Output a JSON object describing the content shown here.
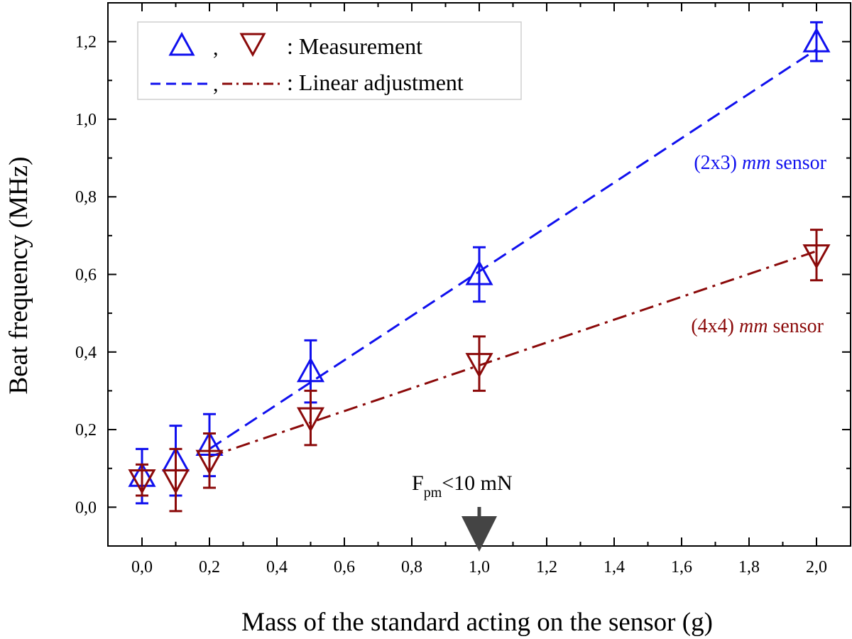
{
  "chart_data": {
    "type": "scatter",
    "xlabel": "Mass of the standard acting on the sensor (g)",
    "ylabel": "Beat frequency (MHz)",
    "x_ticks": [
      {
        "value": 0.0,
        "label": "0,0"
      },
      {
        "value": 0.2,
        "label": "0,2"
      },
      {
        "value": 0.4,
        "label": "0,4"
      },
      {
        "value": 0.6,
        "label": "0,6"
      },
      {
        "value": 0.8,
        "label": "0,8"
      },
      {
        "value": 1.0,
        "label": "1,0"
      },
      {
        "value": 1.2,
        "label": "1,2"
      },
      {
        "value": 1.4,
        "label": "1,4"
      },
      {
        "value": 1.6,
        "label": "1,6"
      },
      {
        "value": 1.8,
        "label": "1,8"
      },
      {
        "value": 2.0,
        "label": "2,0"
      }
    ],
    "y_ticks": [
      {
        "value": 0.0,
        "label": "0,0"
      },
      {
        "value": 0.2,
        "label": "0,2"
      },
      {
        "value": 0.4,
        "label": "0,4"
      },
      {
        "value": 0.6,
        "label": "0,6"
      },
      {
        "value": 0.8,
        "label": "0,8"
      },
      {
        "value": 1.0,
        "label": "1,0"
      },
      {
        "value": 1.2,
        "label": "1,2"
      }
    ],
    "x_tick_positions": [
      0.0,
      0.1,
      0.2,
      0.5,
      1.0,
      2.0
    ],
    "ylim": [
      -0.1,
      1.3
    ],
    "grid": false,
    "legend": {
      "placement": "top-left",
      "measurement_label": ": Measurement",
      "fit_label": ": Linear adjustment",
      "separator": ","
    },
    "series": [
      {
        "sensor": "2x3",
        "marker": "triangle-up",
        "color": "#1010ee",
        "fit_style": "dashed",
        "x": [
          0.0,
          0.1,
          0.2,
          0.5,
          1.0,
          2.0
        ],
        "y": [
          0.08,
          0.12,
          0.16,
          0.35,
          0.6,
          1.2
        ],
        "err": [
          0.07,
          0.09,
          0.08,
          0.08,
          0.07,
          0.05
        ],
        "fit": {
          "x": [
            0.2,
            2.0
          ],
          "y": [
            0.15,
            1.18
          ]
        }
      },
      {
        "sensor": "4x4",
        "marker": "triangle-down",
        "color": "#8b0a0a",
        "fit_style": "dash-dot",
        "x": [
          0.0,
          0.1,
          0.2,
          0.5,
          1.0,
          2.0
        ],
        "y": [
          0.07,
          0.07,
          0.12,
          0.23,
          0.37,
          0.65
        ],
        "err": [
          0.04,
          0.08,
          0.07,
          0.07,
          0.07,
          0.065
        ],
        "fit": {
          "x": [
            0.2,
            2.0
          ],
          "y": [
            0.13,
            0.66
          ]
        }
      }
    ],
    "annotations": [
      {
        "id": "sensor-2x3",
        "prefix": "(2x3) ",
        "italic": "mm",
        "suffix": " sensor",
        "color": "#1010ee",
        "x": 1.76,
        "y": 0.88
      },
      {
        "id": "sensor-4x4",
        "prefix": "(4x4) ",
        "italic": "mm",
        "suffix": " sensor",
        "color": "#8b0a0a",
        "x": 1.76,
        "y": 0.46
      },
      {
        "id": "force-limit",
        "main": "F",
        "sub": "pm",
        "tail": "<10 mN",
        "arrow_x": 1.0,
        "color": "#444444"
      }
    ]
  }
}
